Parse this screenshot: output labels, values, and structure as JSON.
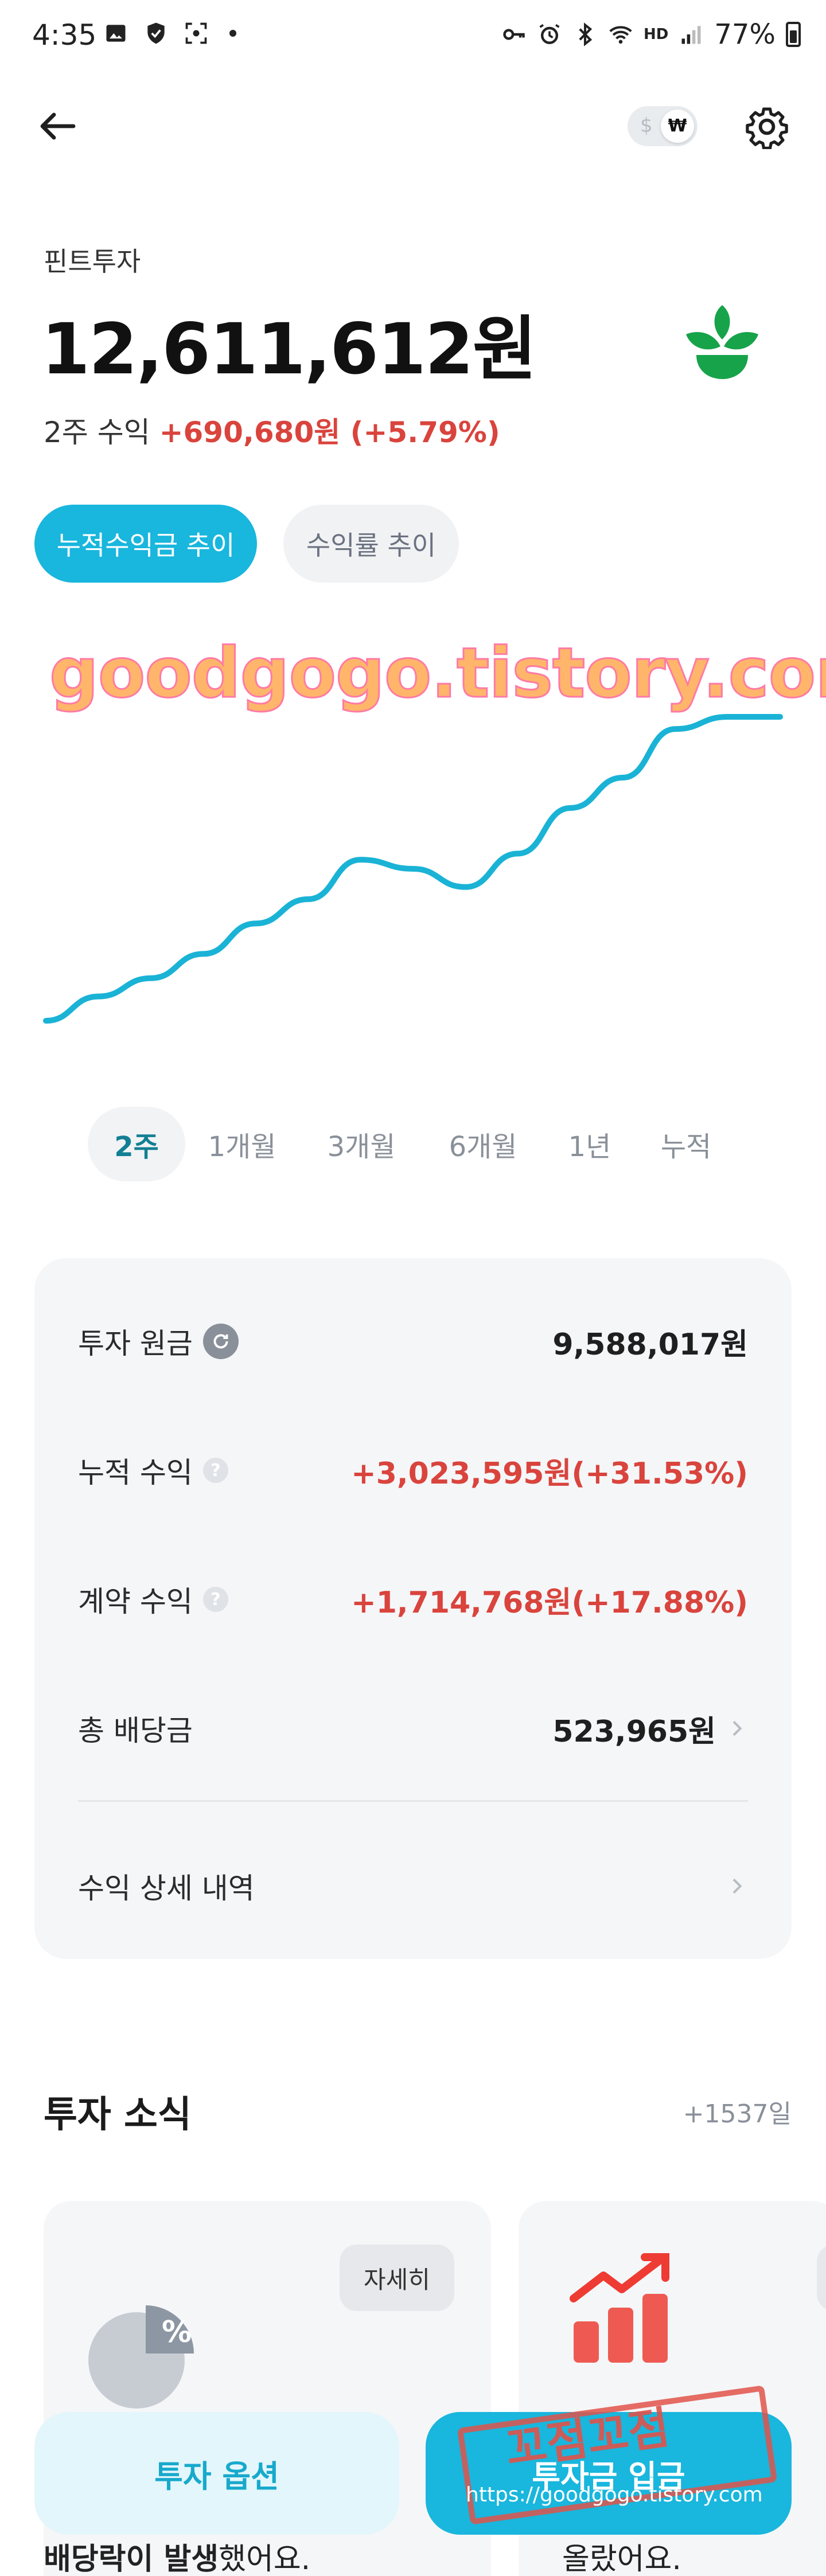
{
  "status_bar": {
    "time": "4:35",
    "hd_label": "HD",
    "battery": "77%"
  },
  "toolbar": {
    "currency_off": "$",
    "currency_on": "₩"
  },
  "header": {
    "company": "핀트투자",
    "amount": "12,611,612원",
    "period_label": "2주 수익",
    "period_gain": "+690,680원 (+5.79%)"
  },
  "chart_tabs": {
    "active": "누적수익금 추이",
    "inactive": "수익률 추이"
  },
  "watermark": "goodgogo.tistory.com",
  "chart_data": {
    "type": "line",
    "title": "",
    "xlabel": "",
    "ylabel": "",
    "series": [
      {
        "values": [
          0,
          8,
          14,
          22,
          32,
          40,
          53,
          50,
          44,
          55,
          70,
          80,
          96,
          100,
          100
        ]
      }
    ],
    "ylim": [
      0,
      100
    ],
    "grid": false,
    "line_color": "#1ab3d6"
  },
  "periods": [
    "2주",
    "1개월",
    "3개월",
    "6개월",
    "1년",
    "누적"
  ],
  "active_period": "2주",
  "summary": {
    "principal_label": "투자 원금",
    "principal_value": "9,588,017원",
    "cumulative_label": "누적 수익",
    "cumulative_value": "+3,023,595원(+31.53%)",
    "contract_label": "계약 수익",
    "contract_value": "+1,714,768원(+17.88%)",
    "dividend_label": "총 배당금",
    "dividend_value": "523,965원",
    "detail_label": "수익 상세 내역"
  },
  "news": {
    "title": "투자 소식",
    "count": "+1537일",
    "card1_button": "자세히",
    "card1_caption_bold": "배당락이 발생",
    "card1_caption_rest": "했어요.",
    "card2_caption": "올랐어요."
  },
  "bottom": {
    "option_button": "투자 옵션",
    "deposit_button": "투자금 입금",
    "stamp_text": "꼬점꼬점",
    "stamp_url": "https://goodgogo.tistory.com"
  },
  "colors": {
    "accent": "#19b6dd",
    "gain_red": "#d9443d",
    "brand_green": "#16a34a"
  }
}
